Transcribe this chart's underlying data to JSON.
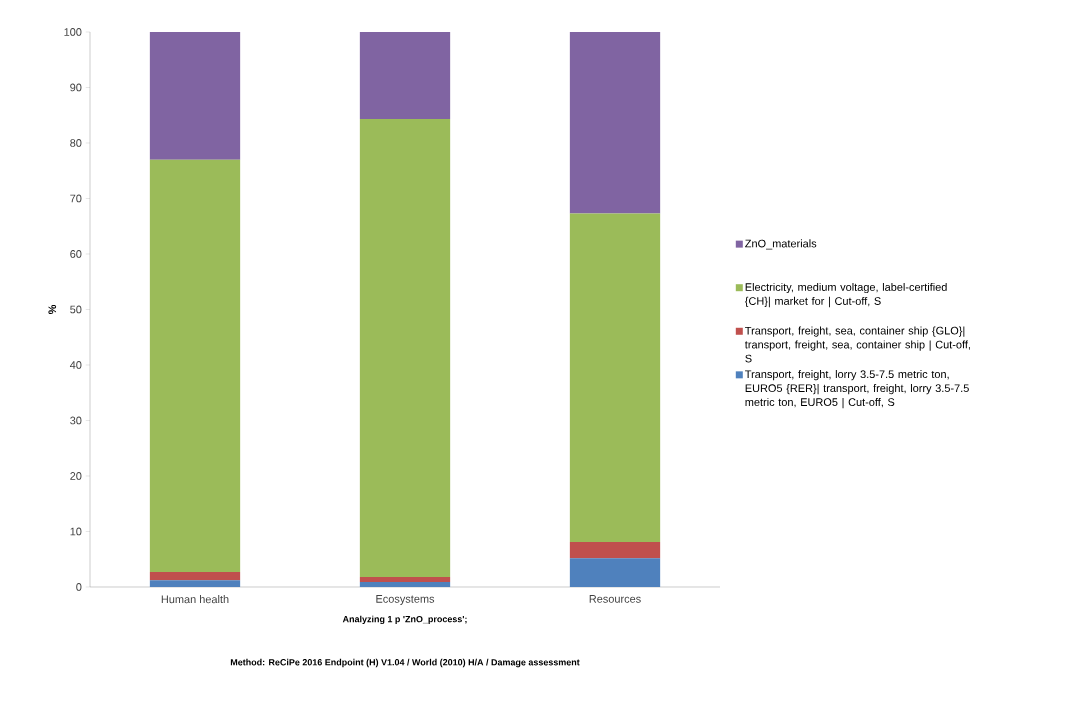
{
  "chart_data": {
    "type": "bar",
    "stacked": true,
    "ylabel": "%",
    "xlabel": "Analyzing 1 p 'ZnO_process';",
    "annotations": [
      "Method: ReCiPe 2016 Endpoint (H) V1.04 / World (2010) H/A / Damage assessment"
    ],
    "categories": [
      "Human health",
      "Ecosystems",
      "Resources"
    ],
    "series": [
      {
        "name": "Transport, freight, lorry 3.5-7.5 metric ton, EURO5 {RER}| transport, freight, lorry 3.5-7.5 metric ton, EURO5 | Cut-off, S",
        "color": "#4f81bd",
        "values": [
          1.2,
          0.9,
          5.2
        ]
      },
      {
        "name": "Transport, freight, sea, container ship {GLO}| transport, freight, sea, container ship | Cut-off, S",
        "color": "#c0504d",
        "values": [
          1.5,
          0.9,
          2.9
        ]
      },
      {
        "name": "Electricity, medium voltage, label-certified {CH}| market for | Cut-off, S",
        "color": "#9bbb59",
        "values": [
          74.3,
          82.5,
          59.2
        ]
      },
      {
        "name": "ZnO_materials",
        "color": "#8064a2",
        "values": [
          23,
          15.7,
          32.7
        ]
      }
    ],
    "ylim": [
      0,
      100
    ],
    "yticks": [
      0,
      10,
      20,
      30,
      40,
      50,
      60,
      70,
      80,
      90,
      100
    ],
    "legend": "right"
  }
}
